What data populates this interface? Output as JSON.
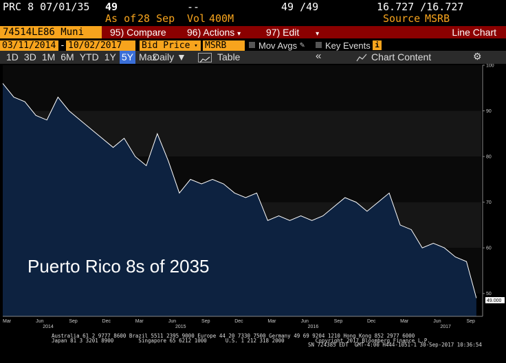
{
  "header": {
    "security": "PRC 8 07/01/35",
    "price": "49",
    "price_change": "--",
    "range": "49 /49",
    "bid_ask": "16.727 /16.727",
    "asof_label": "As of",
    "asof_date": "28 Sep",
    "volume_label": "Vol",
    "volume": "400M",
    "source_label": "Source",
    "source": "MSRB"
  },
  "toolbar": {
    "ticker": "74514LE86 Muni",
    "compare": "95) Compare",
    "actions": "96) Actions",
    "edit": "97) Edit",
    "view": "Line Chart"
  },
  "params": {
    "start_date": "03/11/2014",
    "dash": "-",
    "end_date": "10/02/2017",
    "field": "Bid Price",
    "source": "MSRB",
    "mov_avgs": "Mov Avgs",
    "key_events": "Key Events"
  },
  "periods": [
    "1D",
    "3D",
    "1M",
    "6M",
    "YTD",
    "1Y",
    "5Y",
    "Max"
  ],
  "active_period": "5Y",
  "frequency": "Daily",
  "table_label": "Table",
  "chart_content_label": "Chart Content",
  "collapse_glyph": "«",
  "colors": {
    "accent": "#f7a41d",
    "selected_period": "#3a6fd8",
    "fill": "#0d2240",
    "line": "#ffffff"
  },
  "chart_data": {
    "type": "area",
    "annotation": "Puerto Rico 8s of 2035",
    "last_value_label": "49.000",
    "ylim": [
      45,
      100
    ],
    "yticks": [
      50,
      60,
      70,
      80,
      90,
      100
    ],
    "xticks": [
      "Mar",
      "Jun",
      "Sep",
      "Dec",
      "Mar",
      "Jun",
      "Sep",
      "Dec",
      "Mar",
      "Jun",
      "Sep",
      "Dec",
      "Mar",
      "Jun",
      "Sep"
    ],
    "year_labels": [
      "2014",
      "2015",
      "2016",
      "2017"
    ],
    "x": [
      "2014-03",
      "2014-04",
      "2014-05",
      "2014-06",
      "2014-07",
      "2014-08",
      "2014-09",
      "2014-10",
      "2014-11",
      "2014-12",
      "2015-01",
      "2015-02",
      "2015-03",
      "2015-04",
      "2015-05",
      "2015-06",
      "2015-07",
      "2015-08",
      "2015-09",
      "2015-10",
      "2015-11",
      "2015-12",
      "2016-01",
      "2016-02",
      "2016-03",
      "2016-04",
      "2016-05",
      "2016-06",
      "2016-07",
      "2016-08",
      "2016-09",
      "2016-10",
      "2016-11",
      "2016-12",
      "2017-01",
      "2017-02",
      "2017-03",
      "2017-04",
      "2017-05",
      "2017-06",
      "2017-07",
      "2017-08",
      "2017-09",
      "2017-09-28"
    ],
    "y": [
      96,
      93,
      92,
      89,
      88,
      93,
      90,
      88,
      86,
      84,
      82,
      84,
      80,
      78,
      85,
      79,
      72,
      75,
      74,
      75,
      74,
      72,
      71,
      72,
      66,
      67,
      66,
      67,
      66,
      67,
      69,
      71,
      70,
      68,
      70,
      72,
      65,
      64,
      60,
      61,
      60,
      58,
      57,
      49
    ]
  },
  "footer": {
    "line1": "Australia 61 2 9777 8600 Brazil 5511 2395 9000 Europe 44 20 7330 7500 Germany 49 69 9204 1210 Hong Kong 852 2977 6000",
    "line2": "Japan 81 3 3201 8900        Singapore 65 6212 1000      U.S. 1 212 318 2000          Copyright 2017 Bloomberg Finance L.P.",
    "line3": "SN 724385 EDT  GMT-4:00 H444-1051-1 30-Sep-2017 10:36:54"
  }
}
